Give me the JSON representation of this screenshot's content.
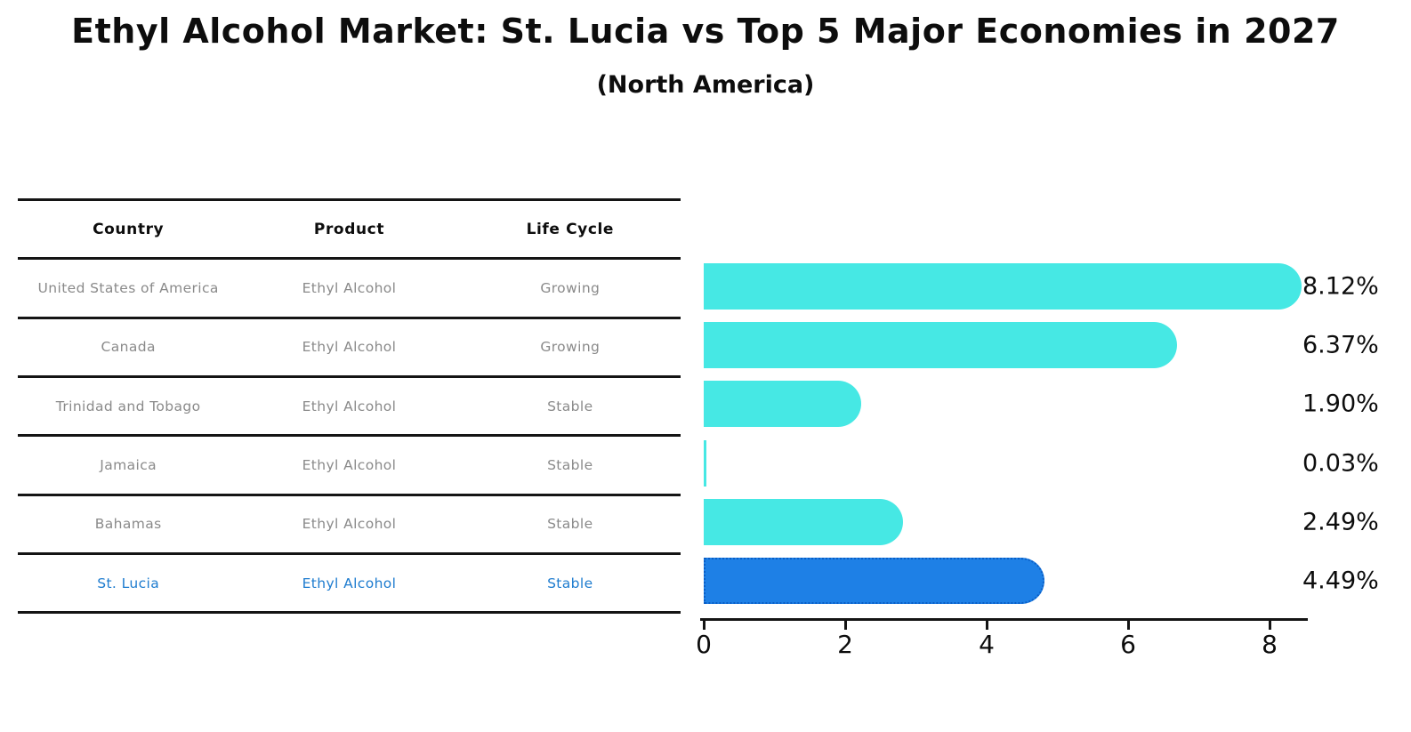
{
  "title": "Ethyl Alcohol Market: St. Lucia vs Top 5 Major Economies in 2027",
  "subtitle": "(North America)",
  "table": {
    "headers": [
      "Country",
      "Product",
      "Life Cycle"
    ],
    "rows": [
      {
        "country": "United States of America",
        "product": "Ethyl Alcohol",
        "life_cycle": "Growing"
      },
      {
        "country": "Canada",
        "product": "Ethyl Alcohol",
        "life_cycle": "Growing"
      },
      {
        "country": "Trinidad and Tobago",
        "product": "Ethyl Alcohol",
        "life_cycle": "Stable"
      },
      {
        "country": "Jamaica",
        "product": "Ethyl Alcohol",
        "life_cycle": "Stable"
      },
      {
        "country": "Bahamas",
        "product": "Ethyl Alcohol",
        "life_cycle": "Stable"
      },
      {
        "country": "St. Lucia",
        "product": "Ethyl Alcohol",
        "life_cycle": "Stable"
      }
    ]
  },
  "chart_data": {
    "type": "bar",
    "orientation": "horizontal",
    "title": "Ethyl Alcohol Market: St. Lucia vs Top 5 Major Economies in 2027",
    "subtitle": "(North America)",
    "categories": [
      "United States of America",
      "Canada",
      "Trinidad and Tobago",
      "Jamaica",
      "Bahamas",
      "St. Lucia"
    ],
    "values": [
      8.12,
      6.37,
      1.9,
      0.03,
      2.49,
      4.49
    ],
    "value_labels": [
      "8.12%",
      "6.37%",
      "1.90%",
      "0.03%",
      "2.49%",
      "4.49%"
    ],
    "x_ticks": [
      0,
      2,
      4,
      6,
      8
    ],
    "xlim": [
      0,
      8.55
    ],
    "xlabel": "",
    "ylabel": "",
    "grid": false,
    "legend": false,
    "highlight_index": 5,
    "colors": {
      "bar": "#46e8e4",
      "highlight_bar": "#1e80e6",
      "highlight_border": "#0a5ec6",
      "table_text": "#8a8a8a",
      "highlight_text": "#1e7ccf",
      "axis_line": "#141414",
      "text": "#0d0d0d"
    }
  }
}
